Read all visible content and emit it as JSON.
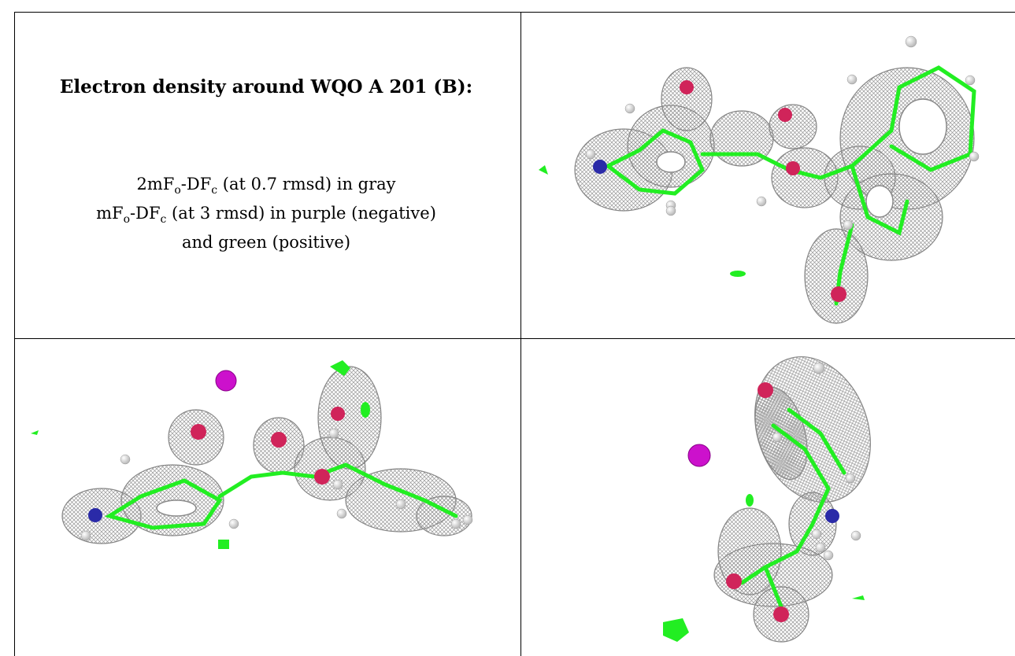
{
  "title": "Electron density around WQO A 201 (B):",
  "legend": {
    "line1_prefix": "2mF",
    "line1_sub1": "o",
    "line1_mid": "-DF",
    "line1_sub2": "c",
    "line1_suffix": " (at 0.7 rmsd) in gray",
    "line2_prefix": "mF",
    "line2_sub1": "o",
    "line2_mid": "-DF",
    "line2_sub2": "c",
    "line2_suffix": " (at 3 rmsd) in purple (negative)",
    "line3": "and green (positive)"
  },
  "colors": {
    "mesh_gray": "#9a9a9a",
    "positive_green": "#22ee22",
    "negative_purple": "#cc11cc",
    "oxygen_red": "#d0245a",
    "nitrogen_blue": "#2a2aa8",
    "hydrogen_white": "#f2f2f2"
  }
}
